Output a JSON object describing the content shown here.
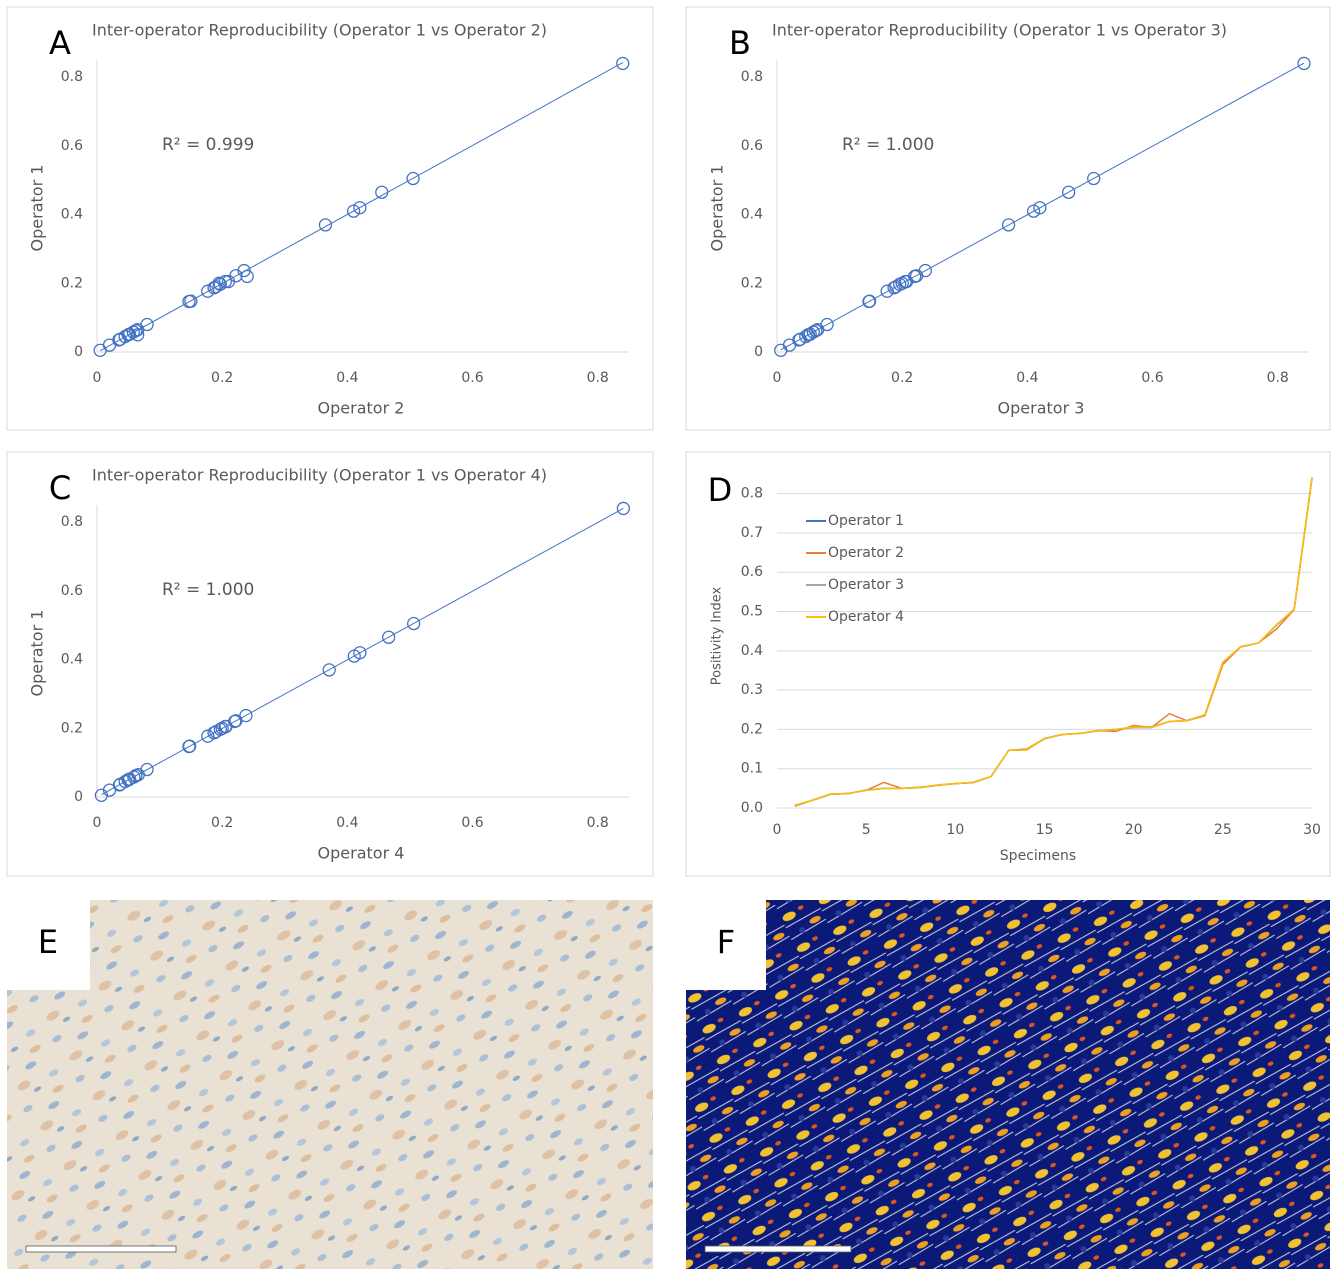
{
  "chart_data": [
    {
      "type": "scatter",
      "panel": "A",
      "title": "Inter-operator Reproducibility (Operator 1 vs Operator 2)",
      "x_label": "Operator 2",
      "y_label": "Operator 1",
      "annotation": "R² = 0.999",
      "color": "#4472c4",
      "x": [
        0.005,
        0.02,
        0.035,
        0.037,
        0.045,
        0.065,
        0.05,
        0.052,
        0.058,
        0.062,
        0.065,
        0.08,
        0.147,
        0.15,
        0.177,
        0.187,
        0.19,
        0.197,
        0.195,
        0.21,
        0.205,
        0.24,
        0.222,
        0.235,
        0.365,
        0.41,
        0.42,
        0.455,
        0.505,
        0.84
      ],
      "values": [
        0.005,
        0.02,
        0.035,
        0.037,
        0.045,
        0.05,
        0.05,
        0.052,
        0.058,
        0.062,
        0.065,
        0.08,
        0.147,
        0.148,
        0.177,
        0.187,
        0.19,
        0.197,
        0.2,
        0.205,
        0.205,
        0.22,
        0.222,
        0.237,
        0.37,
        0.41,
        0.42,
        0.465,
        0.505,
        0.84
      ],
      "xlim": [
        0,
        0.85
      ],
      "ylim": [
        0,
        0.85
      ],
      "xticks": [
        0,
        0.2,
        0.4,
        0.6,
        0.8
      ],
      "yticks": [
        0,
        0.2,
        0.4,
        0.6,
        0.8
      ],
      "grid": false
    },
    {
      "type": "scatter",
      "panel": "B",
      "title": "Inter-operator Reproducibility (Operator 1 vs Operator 3)",
      "x_label": "Operator 3",
      "y_label": "Operator 1",
      "annotation": "R² = 1.000",
      "color": "#4472c4",
      "x": [
        0.006,
        0.02,
        0.035,
        0.037,
        0.046,
        0.05,
        0.05,
        0.053,
        0.058,
        0.062,
        0.065,
        0.08,
        0.147,
        0.148,
        0.176,
        0.187,
        0.19,
        0.196,
        0.2,
        0.205,
        0.207,
        0.22,
        0.223,
        0.237,
        0.37,
        0.41,
        0.42,
        0.466,
        0.506,
        0.842
      ],
      "values": [
        0.005,
        0.02,
        0.035,
        0.037,
        0.045,
        0.05,
        0.05,
        0.052,
        0.058,
        0.062,
        0.065,
        0.08,
        0.147,
        0.148,
        0.177,
        0.187,
        0.19,
        0.197,
        0.2,
        0.205,
        0.205,
        0.22,
        0.222,
        0.237,
        0.37,
        0.41,
        0.42,
        0.465,
        0.505,
        0.84
      ],
      "xlim": [
        0,
        0.85
      ],
      "ylim": [
        0,
        0.85
      ],
      "xticks": [
        0,
        0.2,
        0.4,
        0.6,
        0.8
      ],
      "yticks": [
        0,
        0.2,
        0.4,
        0.6,
        0.8
      ],
      "grid": false
    },
    {
      "type": "scatter",
      "panel": "C",
      "title": "Inter-operator Reproducibility (Operator 1 vs Operator 4)",
      "x_label": "Operator 4",
      "y_label": "Operator 1",
      "annotation": "R² = 1.000",
      "color": "#4472c4",
      "x": [
        0.007,
        0.02,
        0.036,
        0.037,
        0.045,
        0.05,
        0.05,
        0.052,
        0.059,
        0.062,
        0.066,
        0.08,
        0.147,
        0.148,
        0.177,
        0.187,
        0.19,
        0.197,
        0.2,
        0.206,
        0.205,
        0.22,
        0.222,
        0.238,
        0.371,
        0.411,
        0.42,
        0.466,
        0.506,
        0.841
      ],
      "values": [
        0.005,
        0.02,
        0.035,
        0.037,
        0.045,
        0.05,
        0.05,
        0.052,
        0.058,
        0.062,
        0.065,
        0.08,
        0.147,
        0.148,
        0.177,
        0.187,
        0.19,
        0.197,
        0.2,
        0.205,
        0.205,
        0.22,
        0.222,
        0.237,
        0.37,
        0.41,
        0.42,
        0.465,
        0.505,
        0.84
      ],
      "xlim": [
        0,
        0.85
      ],
      "ylim": [
        0,
        0.85
      ],
      "xticks": [
        0,
        0.2,
        0.4,
        0.6,
        0.8
      ],
      "yticks": [
        0,
        0.2,
        0.4,
        0.6,
        0.8
      ],
      "grid": false
    },
    {
      "type": "line",
      "panel": "D",
      "x_label": "Specimens",
      "y_label": "Positivity Index",
      "x": [
        1,
        2,
        3,
        4,
        5,
        6,
        7,
        8,
        9,
        10,
        11,
        12,
        13,
        14,
        15,
        16,
        17,
        18,
        19,
        20,
        21,
        22,
        23,
        24,
        25,
        26,
        27,
        28,
        29,
        30
      ],
      "series": [
        {
          "name": "Operator 1",
          "color": "#4472c4",
          "values": [
            0.005,
            0.02,
            0.035,
            0.037,
            0.045,
            0.05,
            0.05,
            0.052,
            0.058,
            0.062,
            0.065,
            0.08,
            0.147,
            0.148,
            0.177,
            0.187,
            0.19,
            0.197,
            0.2,
            0.205,
            0.205,
            0.22,
            0.222,
            0.237,
            0.37,
            0.41,
            0.42,
            0.465,
            0.505,
            0.84
          ]
        },
        {
          "name": "Operator 2",
          "color": "#ed7d31",
          "values": [
            0.005,
            0.02,
            0.035,
            0.037,
            0.045,
            0.065,
            0.05,
            0.052,
            0.058,
            0.062,
            0.065,
            0.08,
            0.147,
            0.15,
            0.177,
            0.187,
            0.19,
            0.197,
            0.195,
            0.21,
            0.205,
            0.24,
            0.222,
            0.235,
            0.365,
            0.41,
            0.42,
            0.455,
            0.505,
            0.84
          ]
        },
        {
          "name": "Operator 3",
          "color": "#a5a5a5",
          "values": [
            0.006,
            0.02,
            0.035,
            0.037,
            0.046,
            0.05,
            0.05,
            0.053,
            0.058,
            0.062,
            0.065,
            0.08,
            0.147,
            0.148,
            0.176,
            0.187,
            0.19,
            0.196,
            0.2,
            0.205,
            0.207,
            0.22,
            0.223,
            0.237,
            0.37,
            0.41,
            0.42,
            0.466,
            0.506,
            0.842
          ]
        },
        {
          "name": "Operator 4",
          "color": "#ffc000",
          "values": [
            0.007,
            0.02,
            0.036,
            0.037,
            0.045,
            0.05,
            0.05,
            0.052,
            0.059,
            0.062,
            0.066,
            0.08,
            0.147,
            0.148,
            0.177,
            0.187,
            0.19,
            0.197,
            0.2,
            0.206,
            0.205,
            0.22,
            0.222,
            0.238,
            0.371,
            0.411,
            0.42,
            0.466,
            0.506,
            0.841
          ]
        }
      ],
      "xlim": [
        0,
        30
      ],
      "ylim": [
        0,
        0.85
      ],
      "xticks": [
        0,
        5,
        10,
        15,
        20,
        25,
        30
      ],
      "yticks": [
        {
          "value": 0,
          "label": "0.0"
        },
        0.1,
        0.2,
        0.3,
        0.4,
        0.5,
        0.6,
        0.7,
        0.8
      ],
      "grid": true,
      "legend": "upper left"
    }
  ],
  "images": [
    {
      "panel": "E"
    },
    {
      "panel": "F"
    }
  ]
}
